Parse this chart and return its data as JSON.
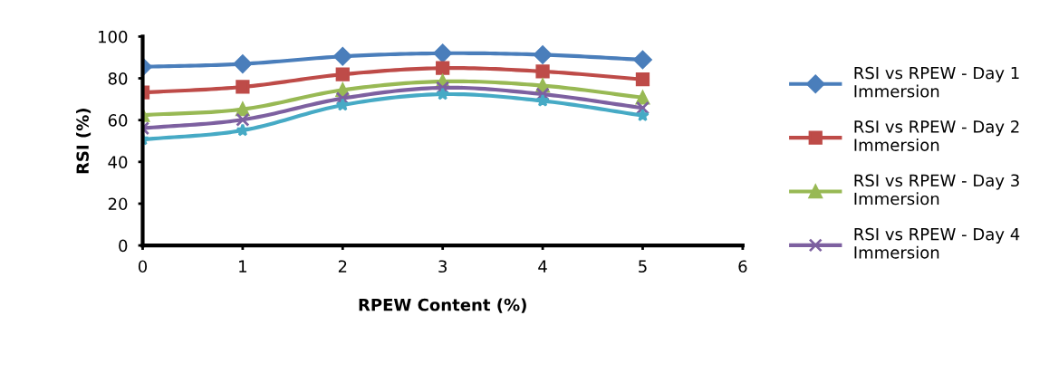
{
  "chart_data": {
    "type": "line",
    "xlabel": "RPEW Content (%)",
    "ylabel": "RSI (%)",
    "x": [
      0,
      1,
      2,
      3,
      4,
      5
    ],
    "xlim": [
      0,
      6
    ],
    "xticks": [
      0,
      1,
      2,
      3,
      4,
      5,
      6
    ],
    "ylim": [
      0,
      100
    ],
    "yticks": [
      0,
      20,
      40,
      60,
      80,
      100
    ],
    "grid": false,
    "legend": "right",
    "line_style": "solid",
    "series": [
      {
        "name": "RSI vs RPEW - Day 1 Immersion",
        "color": "#4a7ebb",
        "marker": "diamond",
        "values": [
          85.5,
          86.9,
          90.5,
          92,
          91.3,
          88.9
        ]
      },
      {
        "name": "RSI vs RPEW - Day 2 Immersion",
        "color": "#be4b48",
        "marker": "square",
        "values": [
          73.2,
          75.9,
          81.9,
          84.9,
          83.3,
          79.5
        ]
      },
      {
        "name": "RSI vs RPEW - Day 3 Immersion",
        "color": "#98b954",
        "marker": "triangle",
        "values": [
          62.4,
          65.2,
          74.4,
          78.5,
          76.5,
          70.8
        ]
      },
      {
        "name": "RSI vs RPEW - Day 4 Immersion",
        "color": "#7d60a0",
        "marker": "cross",
        "values": [
          56.1,
          60.2,
          70.4,
          75.5,
          72.4,
          65.8
        ]
      },
      {
        "color": "#46aac5",
        "marker": "star",
        "values": [
          50.7,
          55.1,
          67.2,
          72.4,
          69.2,
          62.2
        ]
      }
    ]
  }
}
